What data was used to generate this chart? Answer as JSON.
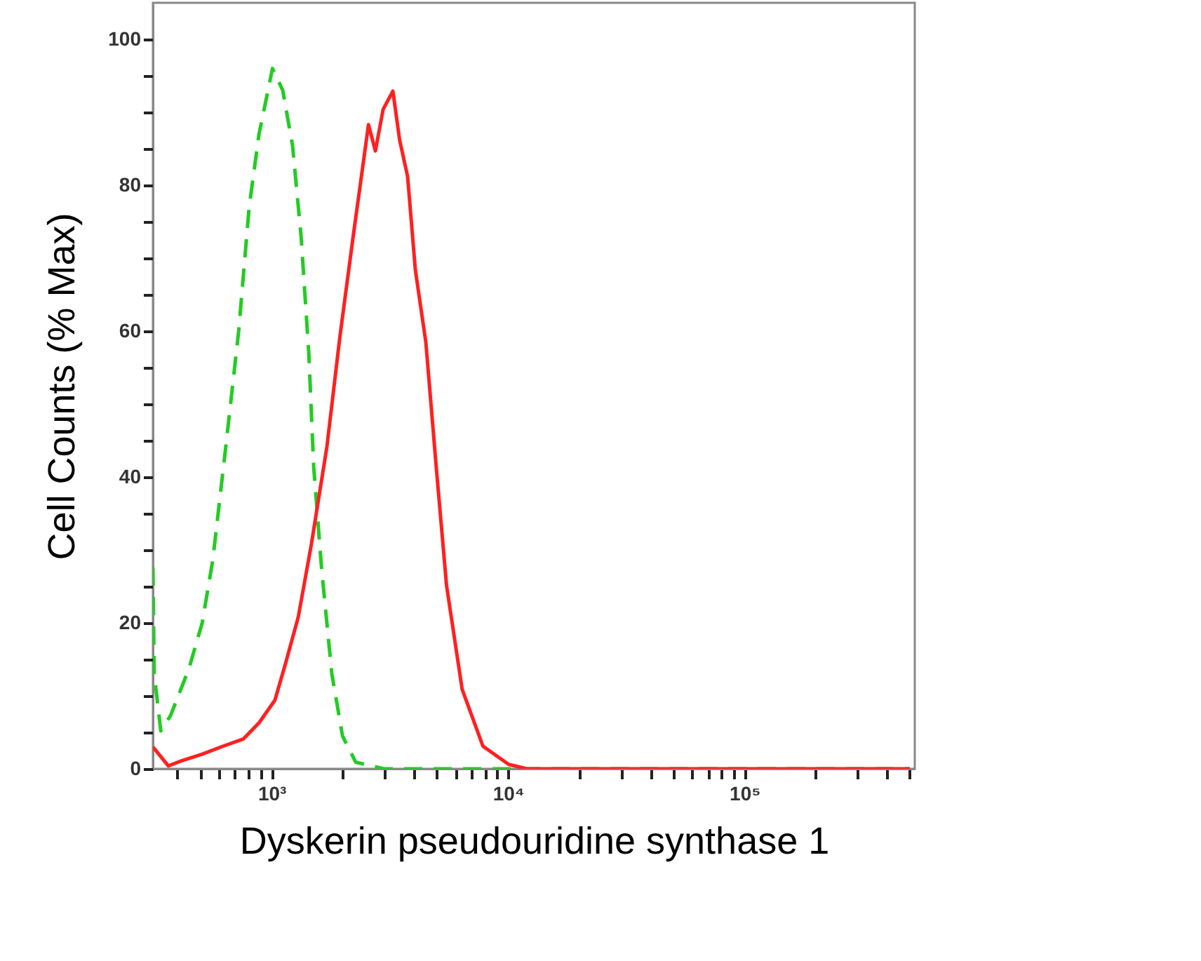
{
  "chart_data": {
    "type": "line",
    "xlabel": "Dyskerin pseudouridine synthase 1",
    "ylabel": "Cell Counts (% Max)",
    "log": "x",
    "grid": false,
    "marker": "none",
    "xlim": [
      315,
      525000
    ],
    "xticks": [
      {
        "value": 400,
        "label": null
      },
      {
        "value": 500,
        "label": null
      },
      {
        "value": 600,
        "label": null
      },
      {
        "value": 700,
        "label": null
      },
      {
        "value": 800,
        "label": null
      },
      {
        "value": 900,
        "label": null
      },
      {
        "value": 1000,
        "label": "10³"
      },
      {
        "value": 2000,
        "label": null
      },
      {
        "value": 3000,
        "label": null
      },
      {
        "value": 4000,
        "label": null
      },
      {
        "value": 5000,
        "label": null
      },
      {
        "value": 6000,
        "label": null
      },
      {
        "value": 7000,
        "label": null
      },
      {
        "value": 8000,
        "label": null
      },
      {
        "value": 9000,
        "label": null
      },
      {
        "value": 10000,
        "label": "10⁴"
      },
      {
        "value": 20000,
        "label": null
      },
      {
        "value": 30000,
        "label": null
      },
      {
        "value": 40000,
        "label": null
      },
      {
        "value": 50000,
        "label": null
      },
      {
        "value": 60000,
        "label": null
      },
      {
        "value": 70000,
        "label": null
      },
      {
        "value": 80000,
        "label": null
      },
      {
        "value": 90000,
        "label": null
      },
      {
        "value": 100000,
        "label": "10⁵"
      },
      {
        "value": 200000,
        "label": null
      },
      {
        "value": 300000,
        "label": null
      },
      {
        "value": 400000,
        "label": null
      },
      {
        "value": 500000,
        "label": null
      }
    ],
    "ylim": [
      0,
      105
    ],
    "yticks": [
      0,
      {
        "value": 5,
        "label": null
      },
      {
        "value": 10,
        "label": null
      },
      {
        "value": 15,
        "label": null
      },
      20,
      {
        "value": 25,
        "label": null
      },
      {
        "value": 30,
        "label": null
      },
      {
        "value": 35,
        "label": null
      },
      40,
      {
        "value": 45,
        "label": null
      },
      {
        "value": 50,
        "label": null
      },
      {
        "value": 55,
        "label": null
      },
      60,
      {
        "value": 65,
        "label": null
      },
      {
        "value": 70,
        "label": null
      },
      {
        "value": 75,
        "label": null
      },
      80,
      {
        "value": 85,
        "label": null
      },
      {
        "value": 90,
        "label": null
      },
      {
        "value": 95,
        "label": null
      },
      100
    ],
    "series": [
      {
        "color": "#22cc22",
        "line_style": "dashed",
        "x": [
          315,
          319,
          340,
          374,
          447,
          509,
          564,
          637,
          726,
          804,
          885,
          1009,
          1115,
          1227,
          1333,
          1437,
          1507,
          1630,
          1799,
          1995,
          2270,
          2985,
          10000,
          100000,
          500000
        ],
        "values": [
          27.6,
          13,
          5.2,
          7.3,
          13.7,
          20,
          28.6,
          43.5,
          60,
          77,
          87,
          96,
          93,
          85.4,
          73,
          57,
          41.4,
          27.2,
          13,
          4.5,
          0.9,
          0,
          0,
          0,
          0
        ]
      },
      {
        "color": "#ff2020",
        "line_style": "solid",
        "x": [
          315,
          366,
          416,
          509,
          624,
          761,
          885,
          1033,
          1145,
          1297,
          1474,
          1715,
          1945,
          2208,
          2570,
          2748,
          2964,
          3259,
          3480,
          3761,
          4055,
          4491,
          4970,
          5496,
          6397,
          7832,
          10070,
          12020,
          100000,
          500000
        ],
        "values": [
          3,
          0.4,
          1.1,
          2,
          3.1,
          4.1,
          6.3,
          9.4,
          14.4,
          20.8,
          30.8,
          44.2,
          59.2,
          72.7,
          88.3,
          84.7,
          90.4,
          92.9,
          86.2,
          81.2,
          68.4,
          58.5,
          41.4,
          25.1,
          10.9,
          3.1,
          0.6,
          0,
          0,
          0
        ]
      }
    ]
  }
}
